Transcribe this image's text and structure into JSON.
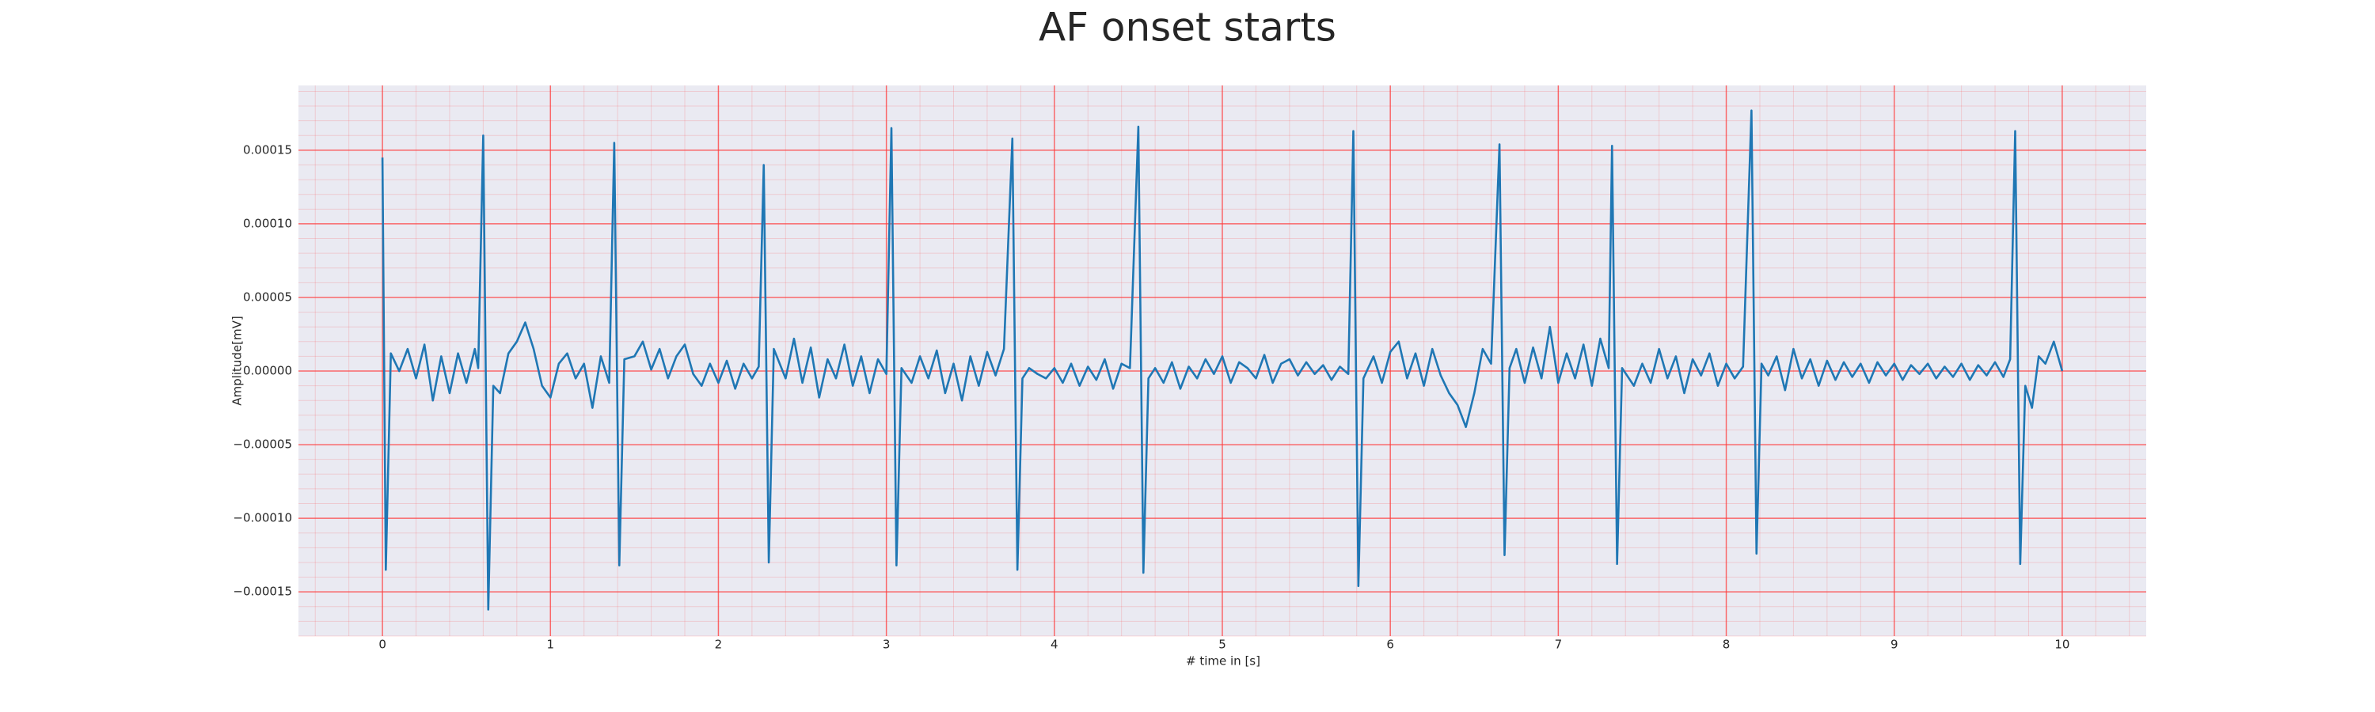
{
  "chart_data": {
    "type": "line",
    "title": "AF onset starts",
    "x_label": "# time in [s]",
    "y_label": "Amplitude[mV]",
    "xlim": [
      -0.5,
      10.5
    ],
    "ylim": [
      -0.00018,
      0.000194
    ],
    "xticks": [
      0,
      1,
      2,
      3,
      4,
      5,
      6,
      7,
      8,
      9,
      10
    ],
    "yticks": [
      {
        "value": -0.00015,
        "label": "−0.00015"
      },
      {
        "value": -0.0001,
        "label": "−0.00010"
      },
      {
        "value": -5e-05,
        "label": "−0.00005"
      },
      {
        "value": 0,
        "label": "0.00000"
      },
      {
        "value": 5e-05,
        "label": "0.00005"
      },
      {
        "value": 0.0001,
        "label": "0.00010"
      },
      {
        "value": 0.00015,
        "label": "0.00015"
      }
    ],
    "grid": true,
    "grid_color": "#ff3b3b",
    "minor_grid": true,
    "background": "#eaeaf2",
    "series": [
      {
        "color": "#1f77b4",
        "x": [
          0,
          0.02,
          0.05,
          0.1,
          0.15,
          0.2,
          0.25,
          0.3,
          0.35,
          0.4,
          0.45,
          0.5,
          0.55,
          0.57,
          0.6,
          0.63,
          0.66,
          0.7,
          0.75,
          0.8,
          0.85,
          0.9,
          0.95,
          1.0,
          1.05,
          1.1,
          1.15,
          1.2,
          1.25,
          1.3,
          1.35,
          1.38,
          1.41,
          1.44,
          1.5,
          1.55,
          1.6,
          1.65,
          1.7,
          1.75,
          1.8,
          1.85,
          1.9,
          1.95,
          2.0,
          2.05,
          2.1,
          2.15,
          2.2,
          2.24,
          2.27,
          2.3,
          2.33,
          2.4,
          2.45,
          2.5,
          2.55,
          2.6,
          2.65,
          2.7,
          2.75,
          2.8,
          2.85,
          2.9,
          2.95,
          3.0,
          3.03,
          3.06,
          3.09,
          3.15,
          3.2,
          3.25,
          3.3,
          3.35,
          3.4,
          3.45,
          3.5,
          3.55,
          3.6,
          3.65,
          3.7,
          3.75,
          3.78,
          3.81,
          3.85,
          3.9,
          3.95,
          4.0,
          4.05,
          4.1,
          4.15,
          4.2,
          4.25,
          4.3,
          4.35,
          4.4,
          4.45,
          4.5,
          4.53,
          4.56,
          4.6,
          4.65,
          4.7,
          4.75,
          4.8,
          4.85,
          4.9,
          4.95,
          5.0,
          5.05,
          5.1,
          5.15,
          5.2,
          5.25,
          5.3,
          5.35,
          5.4,
          5.45,
          5.5,
          5.55,
          5.6,
          5.65,
          5.7,
          5.75,
          5.78,
          5.81,
          5.84,
          5.9,
          5.95,
          6.0,
          6.05,
          6.1,
          6.15,
          6.2,
          6.25,
          6.3,
          6.35,
          6.4,
          6.45,
          6.5,
          6.55,
          6.6,
          6.65,
          6.68,
          6.71,
          6.75,
          6.8,
          6.85,
          6.9,
          6.95,
          7.0,
          7.05,
          7.1,
          7.15,
          7.2,
          7.25,
          7.3,
          7.32,
          7.35,
          7.38,
          7.45,
          7.5,
          7.55,
          7.6,
          7.65,
          7.7,
          7.75,
          7.8,
          7.85,
          7.9,
          7.95,
          8.0,
          8.05,
          8.1,
          8.15,
          8.18,
          8.21,
          8.25,
          8.3,
          8.35,
          8.4,
          8.45,
          8.5,
          8.55,
          8.6,
          8.65,
          8.7,
          8.75,
          8.8,
          8.85,
          8.9,
          8.95,
          9.0,
          9.05,
          9.1,
          9.15,
          9.2,
          9.25,
          9.3,
          9.35,
          9.4,
          9.45,
          9.5,
          9.55,
          9.6,
          9.65,
          9.69,
          9.72,
          9.75,
          9.78,
          9.82,
          9.86,
          9.9,
          9.95,
          10.0
        ],
        "values": [
          0.000145,
          -0.000135,
          1.2e-05,
          0,
          1.5e-05,
          -5e-06,
          1.8e-05,
          -2e-05,
          1e-05,
          -1.5e-05,
          1.2e-05,
          -8e-06,
          1.5e-05,
          2e-06,
          0.00016,
          -0.000162,
          -1e-05,
          -1.5e-05,
          1.2e-05,
          2e-05,
          3.3e-05,
          1.5e-05,
          -1e-05,
          -1.8e-05,
          5e-06,
          1.2e-05,
          -5e-06,
          5e-06,
          -2.5e-05,
          1e-05,
          -8e-06,
          0.000155,
          -0.000132,
          8e-06,
          1e-05,
          2e-05,
          1e-06,
          1.5e-05,
          -5e-06,
          1e-05,
          1.8e-05,
          -2e-06,
          -1e-05,
          5e-06,
          -8e-06,
          7e-06,
          -1.2e-05,
          5e-06,
          -5e-06,
          3e-06,
          0.00014,
          -0.00013,
          1.5e-05,
          -5e-06,
          2.2e-05,
          -8e-06,
          1.6e-05,
          -1.8e-05,
          8e-06,
          -5e-06,
          1.8e-05,
          -1e-05,
          1e-05,
          -1.5e-05,
          8e-06,
          -2e-06,
          0.000165,
          -0.000132,
          2e-06,
          -8e-06,
          1e-05,
          -5e-06,
          1.4e-05,
          -1.5e-05,
          5e-06,
          -2e-05,
          1e-05,
          -1e-05,
          1.3e-05,
          -3e-06,
          1.5e-05,
          0.000158,
          -0.000135,
          -5e-06,
          2e-06,
          -2e-06,
          -5e-06,
          2e-06,
          -8e-06,
          5e-06,
          -1e-05,
          3e-06,
          -6e-06,
          8e-06,
          -1.2e-05,
          5e-06,
          2e-06,
          0.000166,
          -0.000137,
          -5e-06,
          2e-06,
          -8e-06,
          6e-06,
          -1.2e-05,
          3e-06,
          -5e-06,
          8e-06,
          -2e-06,
          1e-05,
          -8e-06,
          6e-06,
          2e-06,
          -5e-06,
          1.1e-05,
          -8e-06,
          5e-06,
          8e-06,
          -3e-06,
          6e-06,
          -2e-06,
          4e-06,
          -6e-06,
          3e-06,
          -2e-06,
          0.000163,
          -0.000146,
          -5e-06,
          1e-05,
          -8e-06,
          1.3e-05,
          2e-05,
          -5e-06,
          1.2e-05,
          -1e-05,
          1.5e-05,
          -3e-06,
          -1.5e-05,
          -2.3e-05,
          -3.8e-05,
          -1.5e-05,
          1.5e-05,
          5e-06,
          0.000154,
          -0.000125,
          2e-06,
          1.5e-05,
          -8e-06,
          1.6e-05,
          -5e-06,
          3e-05,
          -8e-06,
          1.2e-05,
          -5e-06,
          1.8e-05,
          -1e-05,
          2.2e-05,
          2e-06,
          0.000153,
          -0.000131,
          2e-06,
          -1e-05,
          5e-06,
          -8e-06,
          1.5e-05,
          -5e-06,
          1e-05,
          -1.5e-05,
          8e-06,
          -3e-06,
          1.2e-05,
          -1e-05,
          5e-06,
          -5e-06,
          3e-06,
          0.000177,
          -0.000124,
          5e-06,
          -3e-06,
          1e-05,
          -1.3e-05,
          1.5e-05,
          -5e-06,
          8e-06,
          -1e-05,
          7e-06,
          -6e-06,
          6e-06,
          -4e-06,
          5e-06,
          -8e-06,
          6e-06,
          -3e-06,
          5e-06,
          -6e-06,
          4e-06,
          -2e-06,
          5e-06,
          -5e-06,
          3e-06,
          -4e-06,
          5e-06,
          -6e-06,
          4e-06,
          -3e-06,
          6e-06,
          -4e-06,
          8e-06,
          0.000163,
          -0.000131,
          -1e-05,
          -2.5e-05,
          1e-05,
          5e-06,
          2e-05,
          0
        ]
      }
    ]
  }
}
